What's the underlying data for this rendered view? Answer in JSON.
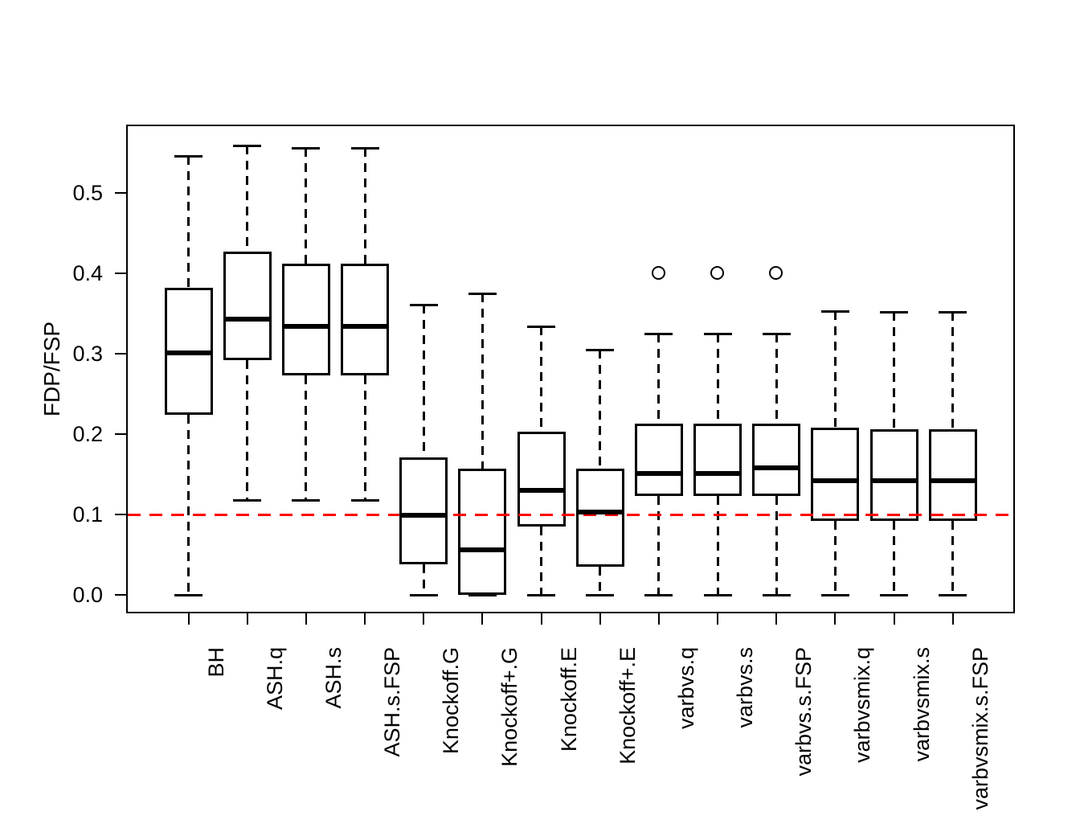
{
  "chart_data": {
    "type": "boxplot",
    "title": "",
    "xlabel": "",
    "ylabel": "FDP/FSP",
    "yticks": [
      0.0,
      0.1,
      0.2,
      0.3,
      0.4,
      0.5
    ],
    "ylim": [
      -0.023,
      0.585
    ],
    "grid": false,
    "reference_line": {
      "value": 0.1,
      "color": "#FF0000",
      "style": "dashed"
    },
    "categories": [
      "BH",
      "ASH.q",
      "ASH.s",
      "ASH.s.FSP",
      "Knockoff.G",
      "Knockoff+.G",
      "Knockoff.E",
      "Knockoff+.E",
      "varbvs.q",
      "varbvs.s",
      "varbvs.s.FSP",
      "varbvsmix.q",
      "varbvsmix.s",
      "varbvsmix.s.FSP"
    ],
    "series": [
      {
        "name": "BH",
        "whisker_low": 0.0,
        "q1": 0.224,
        "median": 0.301,
        "q3": 0.382,
        "whisker_high": 0.546,
        "outliers": []
      },
      {
        "name": "ASH.q",
        "whisker_low": 0.118,
        "q1": 0.292,
        "median": 0.343,
        "q3": 0.427,
        "whisker_high": 0.559,
        "outliers": []
      },
      {
        "name": "ASH.s",
        "whisker_low": 0.118,
        "q1": 0.273,
        "median": 0.334,
        "q3": 0.412,
        "whisker_high": 0.556,
        "outliers": []
      },
      {
        "name": "ASH.s.FSP",
        "whisker_low": 0.118,
        "q1": 0.273,
        "median": 0.334,
        "q3": 0.412,
        "whisker_high": 0.556,
        "outliers": []
      },
      {
        "name": "Knockoff.G",
        "whisker_low": 0.0,
        "q1": 0.038,
        "median": 0.099,
        "q3": 0.171,
        "whisker_high": 0.361,
        "outliers": []
      },
      {
        "name": "Knockoff+.G",
        "whisker_low": 0.0,
        "q1": 0.0,
        "median": 0.056,
        "q3": 0.157,
        "whisker_high": 0.375,
        "outliers": []
      },
      {
        "name": "Knockoff.E",
        "whisker_low": 0.0,
        "q1": 0.085,
        "median": 0.13,
        "q3": 0.203,
        "whisker_high": 0.334,
        "outliers": []
      },
      {
        "name": "Knockoff+.E",
        "whisker_low": 0.0,
        "q1": 0.035,
        "median": 0.103,
        "q3": 0.157,
        "whisker_high": 0.305,
        "outliers": []
      },
      {
        "name": "varbvs.q",
        "whisker_low": 0.0,
        "q1": 0.123,
        "median": 0.151,
        "q3": 0.213,
        "whisker_high": 0.325,
        "outliers": [
          0.4
        ]
      },
      {
        "name": "varbvs.s",
        "whisker_low": 0.0,
        "q1": 0.123,
        "median": 0.151,
        "q3": 0.213,
        "whisker_high": 0.325,
        "outliers": [
          0.4
        ]
      },
      {
        "name": "varbvs.s.FSP",
        "whisker_low": 0.0,
        "q1": 0.123,
        "median": 0.158,
        "q3": 0.213,
        "whisker_high": 0.325,
        "outliers": [
          0.4
        ]
      },
      {
        "name": "varbvsmix.q",
        "whisker_low": 0.0,
        "q1": 0.092,
        "median": 0.142,
        "q3": 0.208,
        "whisker_high": 0.353,
        "outliers": []
      },
      {
        "name": "varbvsmix.s",
        "whisker_low": 0.0,
        "q1": 0.092,
        "median": 0.142,
        "q3": 0.206,
        "whisker_high": 0.352,
        "outliers": []
      },
      {
        "name": "varbvsmix.s.FSP",
        "whisker_low": 0.0,
        "q1": 0.092,
        "median": 0.142,
        "q3": 0.206,
        "whisker_high": 0.352,
        "outliers": []
      }
    ]
  }
}
